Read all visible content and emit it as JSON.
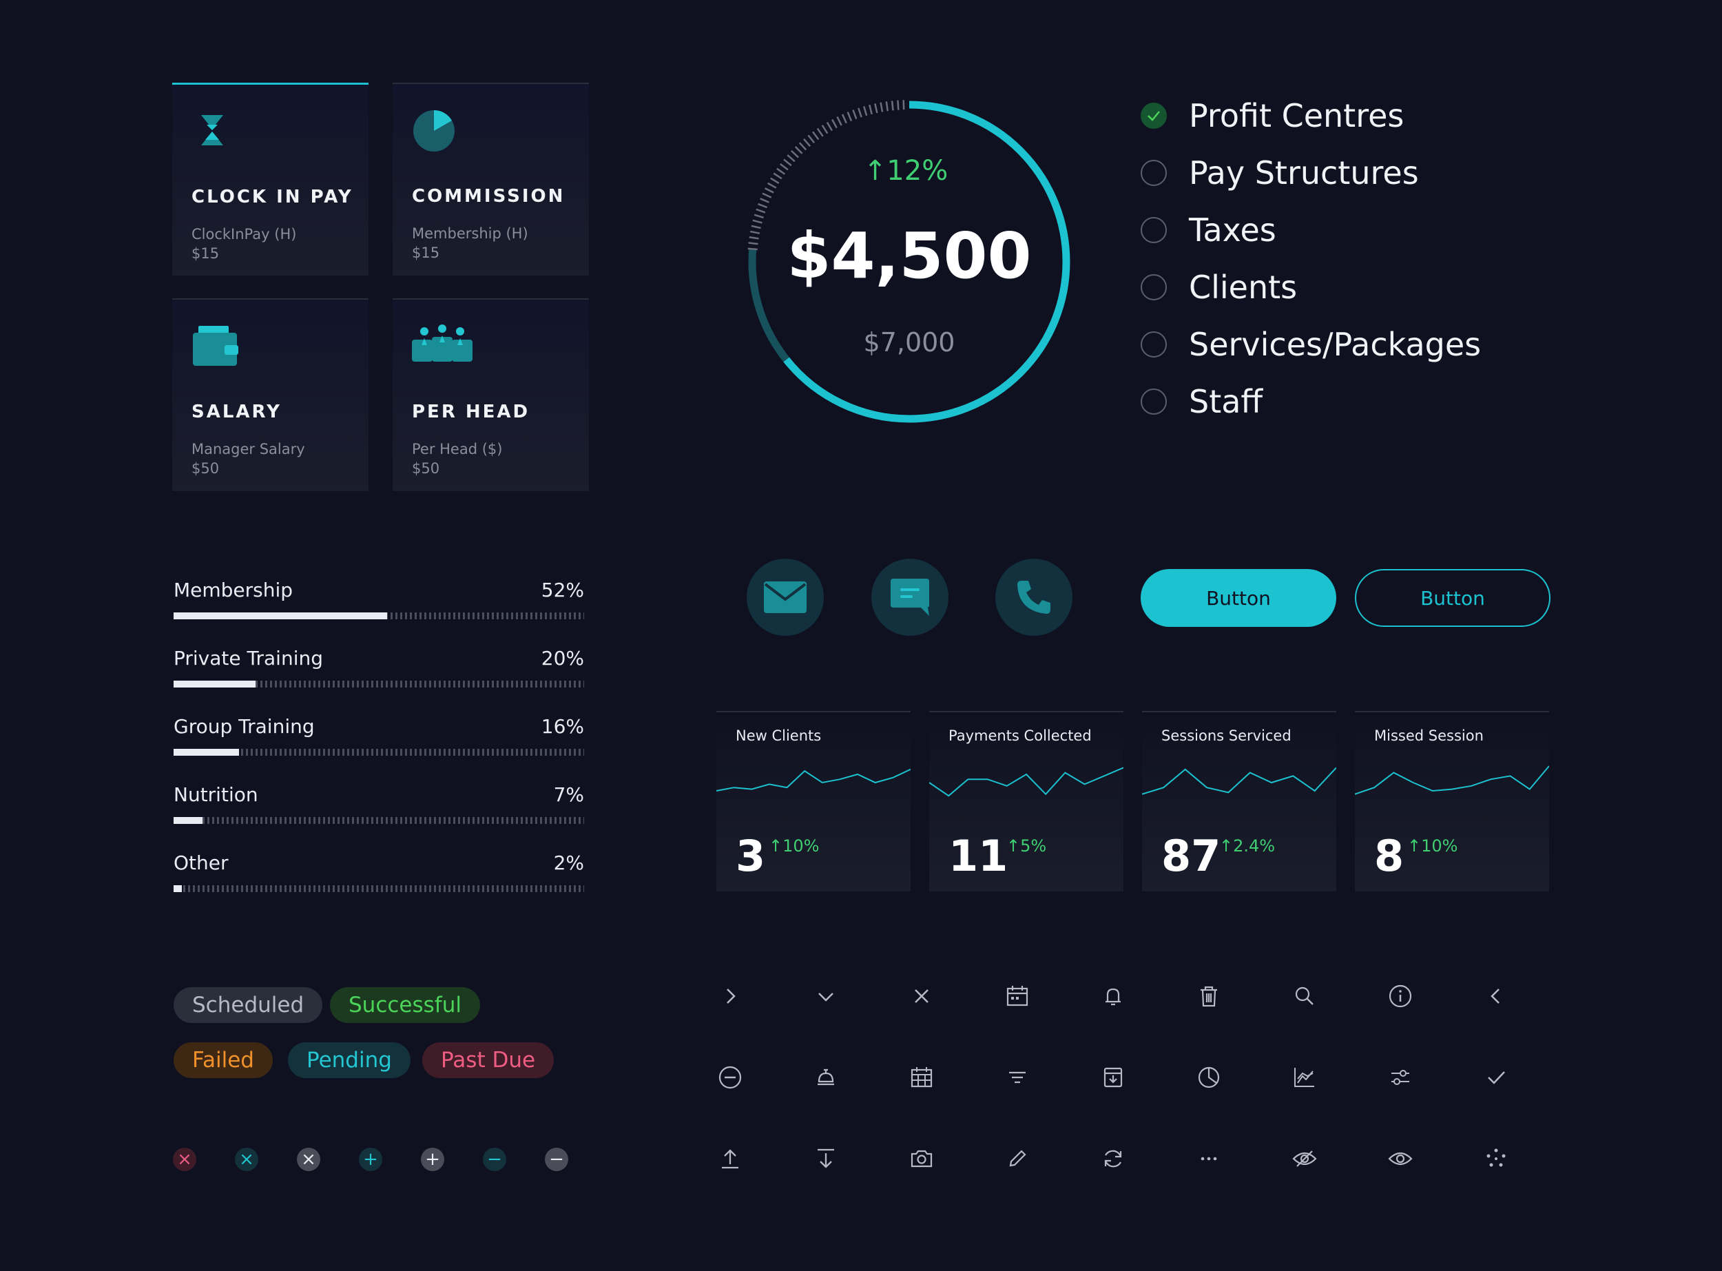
{
  "pay_types": [
    {
      "title": "CLOCK IN PAY",
      "subtitle": "ClockInPay (H)",
      "amount": "$15",
      "icon": "hourglass-icon",
      "active": true
    },
    {
      "title": "COMMISSION",
      "subtitle": "Membership (H)",
      "amount": "$15",
      "icon": "pie-chart-icon",
      "active": false
    },
    {
      "title": "SALARY",
      "subtitle": "Manager Salary",
      "amount": "$50",
      "icon": "wallet-icon",
      "active": false
    },
    {
      "title": "PER HEAD",
      "subtitle": "Per Head ($)",
      "amount": "$50",
      "icon": "group-icon",
      "active": false
    }
  ],
  "donut": {
    "change": "↑12%",
    "value": "$4,500",
    "target": "$7,000",
    "progress_fraction": 0.643,
    "accent_color": "#1cc2cf"
  },
  "checklist": [
    {
      "label": "Profit Centres",
      "checked": true
    },
    {
      "label": "Pay Structures",
      "checked": false
    },
    {
      "label": "Taxes",
      "checked": false
    },
    {
      "label": "Clients",
      "checked": false
    },
    {
      "label": "Services/Packages",
      "checked": false
    },
    {
      "label": "Staff",
      "checked": false
    }
  ],
  "progress": [
    {
      "label": "Membership",
      "value": "52%",
      "fraction": 0.52
    },
    {
      "label": "Private Training",
      "value": "20%",
      "fraction": 0.2
    },
    {
      "label": "Group Training",
      "value": "16%",
      "fraction": 0.16
    },
    {
      "label": "Nutrition",
      "value": "7%",
      "fraction": 0.07
    },
    {
      "label": "Other",
      "value": "2%",
      "fraction": 0.02
    }
  ],
  "contact_icons": [
    "mail-icon",
    "chat-icon",
    "phone-icon"
  ],
  "buttons": {
    "primary": "Button",
    "secondary": "Button"
  },
  "stats": [
    {
      "label": "New Clients",
      "value": "3",
      "change": "↑10%",
      "trend": [
        30,
        26,
        28,
        22,
        26,
        6,
        20,
        16,
        10,
        20,
        14,
        4
      ]
    },
    {
      "label": "Payments Collected",
      "value": "11",
      "change": "↑5%",
      "trend": [
        20,
        36,
        16,
        16,
        24,
        10,
        34,
        8,
        22,
        12,
        2
      ]
    },
    {
      "label": "Sessions Serviced",
      "value": "87",
      "change": "↑2.4%",
      "trend": [
        34,
        26,
        4,
        26,
        32,
        8,
        20,
        12,
        30,
        2
      ]
    },
    {
      "label": "Missed Session",
      "value": "8",
      "change": "↑10%",
      "trend": [
        34,
        26,
        8,
        20,
        30,
        28,
        24,
        16,
        12,
        28,
        0
      ]
    }
  ],
  "badges": [
    {
      "label": "Scheduled",
      "bg": "#2b2e3b",
      "fg": "#b7bac4"
    },
    {
      "label": "Successful",
      "bg": "#1b3a1f",
      "fg": "#4cd45a"
    },
    {
      "label": "Failed",
      "bg": "#3e2813",
      "fg": "#f0912a"
    },
    {
      "label": "Pending",
      "bg": "#13323b",
      "fg": "#23c6d1"
    },
    {
      "label": "Past Due",
      "bg": "#3f1c28",
      "fg": "#ef5d82"
    }
  ],
  "mini_icons": [
    {
      "name": "close-circle-red-icon",
      "glyph": "×",
      "bg": "#3f1c28",
      "fg": "#ef5d82"
    },
    {
      "name": "close-circle-teal-icon",
      "glyph": "×",
      "bg": "#13323b",
      "fg": "#23c6d1"
    },
    {
      "name": "close-circle-grey-icon",
      "glyph": "×",
      "bg": "#4a4d58",
      "fg": "#e9ecf2"
    },
    {
      "name": "plus-circle-teal-icon",
      "glyph": "+",
      "bg": "#13323b",
      "fg": "#23c6d1"
    },
    {
      "name": "plus-circle-grey-icon",
      "glyph": "+",
      "bg": "#4a4d58",
      "fg": "#e9ecf2"
    },
    {
      "name": "minus-circle-teal-icon",
      "glyph": "−",
      "bg": "#13323b",
      "fg": "#23c6d1"
    },
    {
      "name": "minus-circle-grey-icon",
      "glyph": "−",
      "bg": "#4a4d58",
      "fg": "#e9ecf2"
    }
  ],
  "icon_grid": [
    [
      "chevron-right-icon",
      "chevron-down-icon",
      "close-icon",
      "calendar-icon",
      "bell-icon",
      "trash-icon",
      "search-icon",
      "info-icon",
      "chevron-left-icon"
    ],
    [
      "minus-circle-icon",
      "service-bell-icon",
      "calendar-grid-icon",
      "filter-icon",
      "archive-icon",
      "pie-icon",
      "line-chart-icon",
      "sliders-icon",
      "check-icon"
    ],
    [
      "upload-icon",
      "download-icon",
      "camera-icon",
      "edit-icon",
      "refresh-icon",
      "more-icon",
      "eye-off-icon",
      "eye-icon",
      "loader-icon"
    ]
  ]
}
